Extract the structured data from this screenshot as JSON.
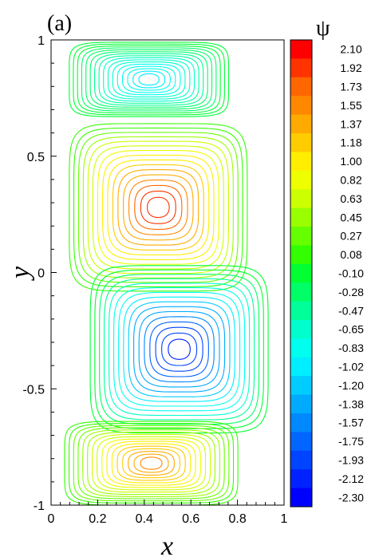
{
  "chart_data": {
    "type": "contour",
    "panel_label": "(a)",
    "xlabel": "x",
    "ylabel": "y",
    "xlim": [
      0,
      1
    ],
    "ylim": [
      -1,
      1
    ],
    "x_ticks": [
      "0",
      "0.2",
      "0.4",
      "0.6",
      "0.8",
      "1"
    ],
    "y_ticks": [
      "-1",
      "-0.5",
      "0",
      "0.5",
      "1"
    ],
    "colorbar": {
      "title": "ψ",
      "levels": [
        "2.10",
        "1.92",
        "1.73",
        "1.55",
        "1.37",
        "1.18",
        "1.00",
        "0.82",
        "0.63",
        "0.45",
        "0.27",
        "0.08",
        "-0.10",
        "-0.28",
        "-0.47",
        "-0.65",
        "-0.83",
        "-1.02",
        "-1.20",
        "-1.38",
        "-1.57",
        "-1.75",
        "-1.93",
        "-2.12",
        "-2.30"
      ],
      "colors": [
        "#ff0000",
        "#ff3300",
        "#ff6600",
        "#ff8800",
        "#ffaa00",
        "#ffcc00",
        "#ffee00",
        "#eeff00",
        "#ccff00",
        "#99ff00",
        "#66ff00",
        "#33ff00",
        "#00ff33",
        "#00ff66",
        "#00ff99",
        "#00ffcc",
        "#00ffee",
        "#00eeff",
        "#00ccff",
        "#00aaff",
        "#0088ff",
        "#0066ff",
        "#0044ff",
        "#0022ff",
        "#0000ff"
      ]
    },
    "vortices": [
      {
        "cx": 0.46,
        "cy": 0.28,
        "psi_max": 2.1,
        "rx": 0.37,
        "ry": 0.35
      },
      {
        "cx": 0.55,
        "cy": -0.33,
        "psi_max": -2.3,
        "rx": 0.37,
        "ry": 0.35
      },
      {
        "cx": 0.42,
        "cy": 0.83,
        "psi_max": -1.1,
        "rx": 0.33,
        "ry": 0.15
      },
      {
        "cx": 0.43,
        "cy": -0.82,
        "psi_max": 1.6,
        "rx": 0.36,
        "ry": 0.17
      }
    ]
  }
}
